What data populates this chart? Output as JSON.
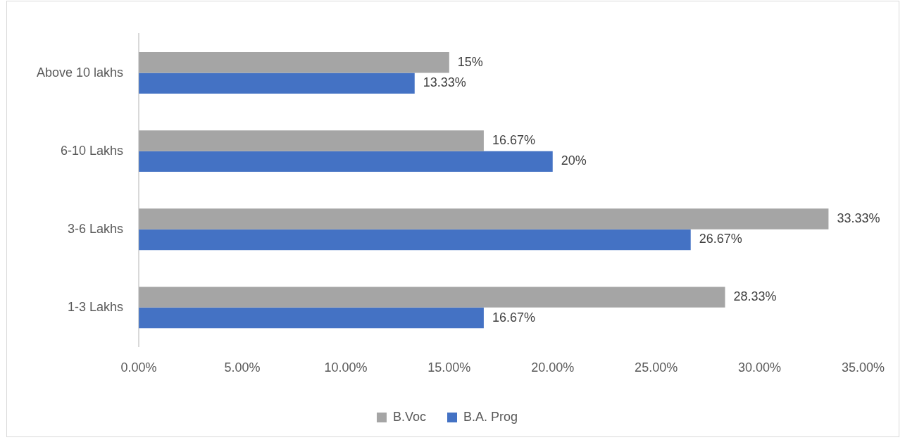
{
  "chart_data": {
    "type": "bar",
    "orientation": "horizontal",
    "categories": [
      "Above 10 lakhs",
      "6-10 Lakhs",
      "3-6 Lakhs",
      "1-3 Lakhs"
    ],
    "series": [
      {
        "name": "B.Voc",
        "color": "#a5a5a5",
        "values": [
          15,
          16.67,
          33.33,
          28.33
        ],
        "value_labels": [
          "15%",
          "16.67%",
          "33.33%",
          "28.33%"
        ]
      },
      {
        "name": "B.A. Prog",
        "color": "#4472c4",
        "values": [
          13.33,
          20,
          26.67,
          16.67
        ],
        "value_labels": [
          "13.33%",
          "20%",
          "26.67%",
          "16.67%"
        ]
      }
    ],
    "xlim": [
      0,
      35
    ],
    "xticks": [
      {
        "value": 0,
        "label": "0.00%"
      },
      {
        "value": 5,
        "label": "5.00%"
      },
      {
        "value": 10,
        "label": "10.00%"
      },
      {
        "value": 15,
        "label": "15.00%"
      },
      {
        "value": 20,
        "label": "20.00%"
      },
      {
        "value": 25,
        "label": "25.00%"
      },
      {
        "value": 30,
        "label": "30.00%"
      },
      {
        "value": 35,
        "label": "35.00%"
      }
    ],
    "grid": false,
    "legend": "bottom"
  }
}
